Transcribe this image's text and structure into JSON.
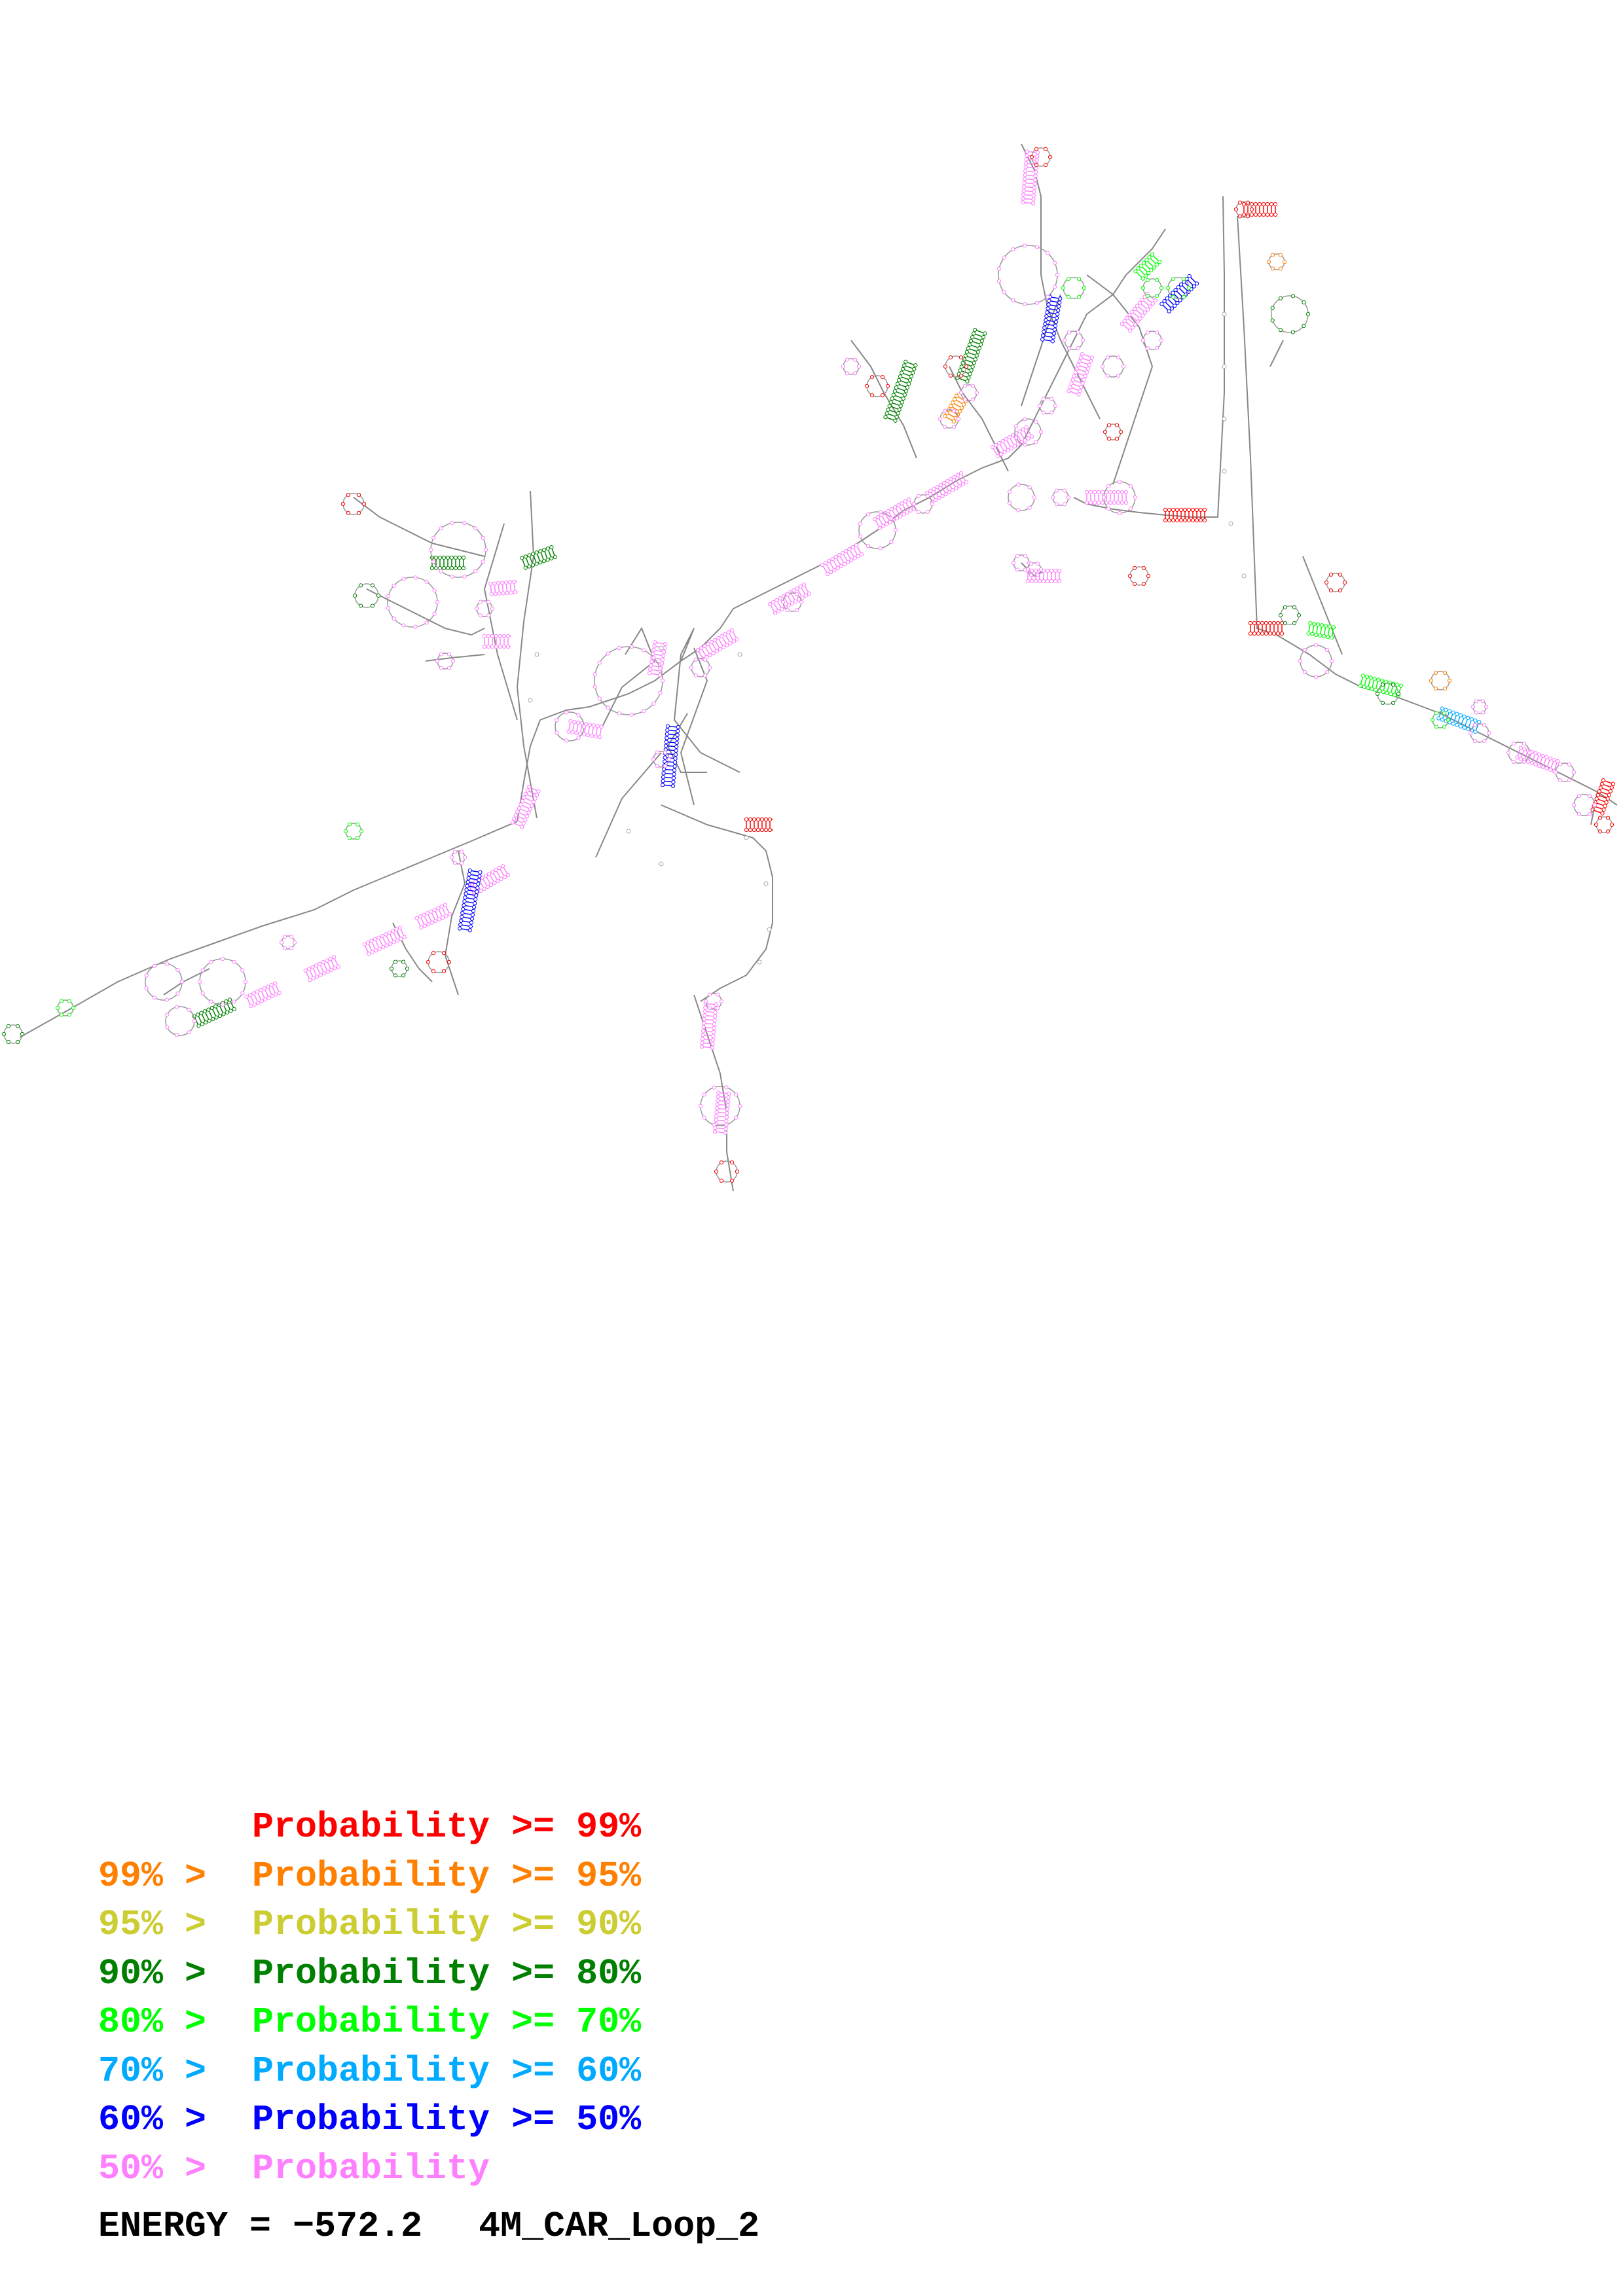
{
  "legend": {
    "items": [
      {
        "lower": "",
        "label": "Probability",
        "upper": ">= 99%",
        "color": "#ff0000"
      },
      {
        "lower": "99% >",
        "label": "Probability",
        "upper": ">= 95%",
        "color": "#ff8000"
      },
      {
        "lower": "95% >",
        "label": "Probability",
        "upper": ">= 90%",
        "color": "#cccc33"
      },
      {
        "lower": "90% >",
        "label": "Probability",
        "upper": ">= 80%",
        "color": "#008000"
      },
      {
        "lower": "80% >",
        "label": "Probability",
        "upper": ">= 70%",
        "color": "#00ff00"
      },
      {
        "lower": "70% >",
        "label": "Probability",
        "upper": ">= 60%",
        "color": "#00aaff"
      },
      {
        "lower": "60% >",
        "label": "Probability",
        "upper": ">= 50%",
        "color": "#0000ff"
      },
      {
        "lower": "50% >",
        "label": "Probability",
        "upper": "",
        "color": "#ff80ff"
      }
    ]
  },
  "energy": {
    "label": "ENERGY = −572.2",
    "name": "4M_CAR_Loop_2"
  },
  "palette": {
    "backbone": "#888888",
    "default_base": "#c79ad0"
  }
}
